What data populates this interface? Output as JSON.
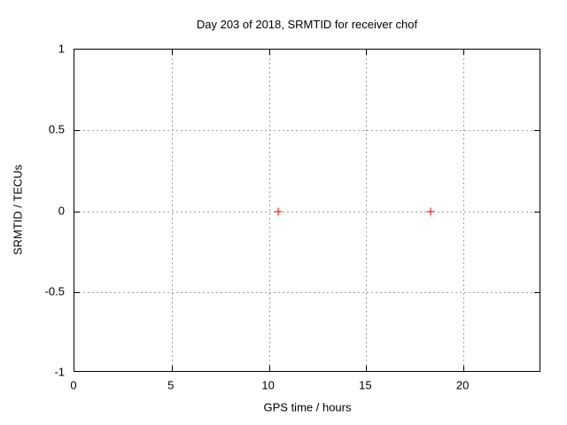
{
  "style": {
    "background": "#ffffff",
    "text_color": "#000000",
    "border_color": "#000000",
    "grid_color": "#9e9e9e"
  },
  "chart_data": {
    "type": "scatter",
    "title": "Day 203 of 2018, SRMTID for receiver chof",
    "xlabel": "GPS time / hours",
    "ylabel": "SRMTID / TECUs",
    "xlim": [
      0,
      24
    ],
    "ylim": [
      -1,
      1
    ],
    "grid": true,
    "legend": "none",
    "xticks": [
      {
        "value": 0,
        "label": "0"
      },
      {
        "value": 5,
        "label": "5"
      },
      {
        "value": 10,
        "label": "10"
      },
      {
        "value": 15,
        "label": "15"
      },
      {
        "value": 20,
        "label": "20"
      }
    ],
    "yticks": [
      {
        "value": 1,
        "label": "1"
      },
      {
        "value": 0.5,
        "label": "0.5"
      },
      {
        "value": 0,
        "label": "0"
      },
      {
        "value": -0.5,
        "label": "-0.5"
      },
      {
        "value": -1,
        "label": "-1"
      }
    ],
    "series": [
      {
        "name": "SRMTID",
        "marker": "plus",
        "color": "#ff0000",
        "points": [
          [
            10.47,
            0.0
          ],
          [
            18.31,
            0.0
          ]
        ]
      }
    ]
  }
}
